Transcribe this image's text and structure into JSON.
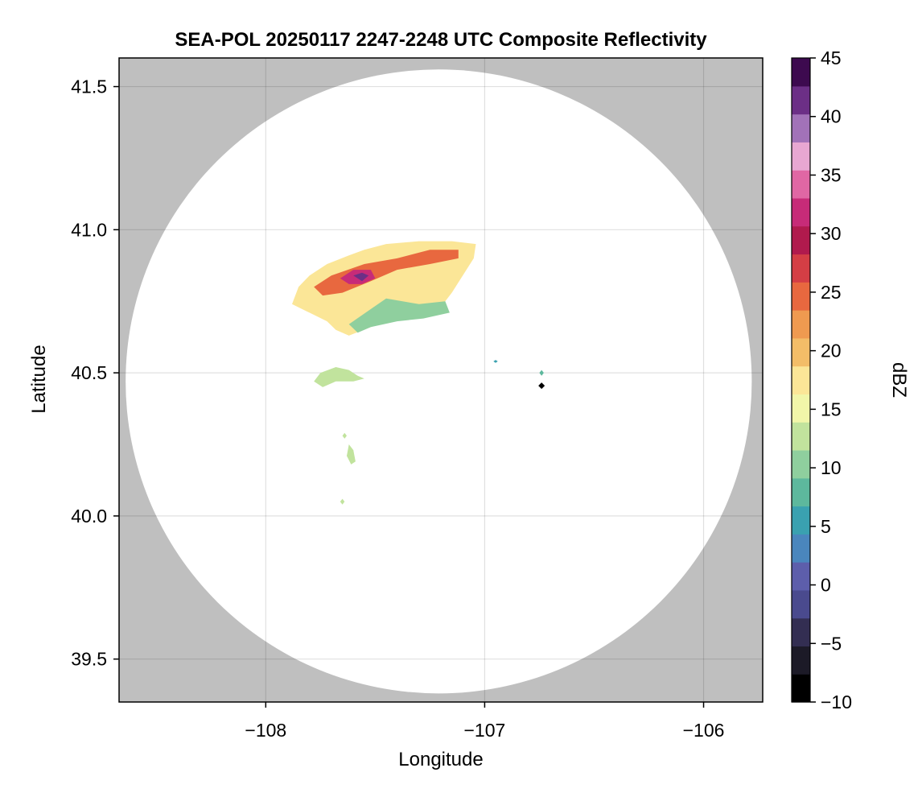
{
  "chart_data": {
    "type": "heatmap",
    "title": "SEA-POL 20250117 2247-2248 UTC Composite Reflectivity",
    "xlabel": "Longitude",
    "ylabel": "Latitude",
    "xlim": [
      -108.67,
      -105.73
    ],
    "ylim": [
      39.35,
      41.6
    ],
    "x_ticks": [
      -108,
      -107,
      -106
    ],
    "x_tick_labels": [
      "−108",
      "−107",
      "−106"
    ],
    "y_ticks": [
      39.5,
      40.0,
      40.5,
      41.0,
      41.5
    ],
    "y_tick_labels": [
      "39.5",
      "40.0",
      "40.5",
      "41.0",
      "41.5"
    ],
    "grid": true,
    "outside_range_color": "#bfbfbf",
    "radar_coverage": {
      "center_lon": -107.21,
      "center_lat": 40.47,
      "lon_radius": 1.43,
      "lat_radius": 1.09
    },
    "radar_site": {
      "lon": -106.74,
      "lat": 40.455
    },
    "colorbar": {
      "label": "dBZ",
      "min": -10,
      "max": 45,
      "ticks": [
        -10,
        -5,
        0,
        5,
        10,
        15,
        20,
        25,
        30,
        35,
        40,
        45
      ],
      "tick_labels": [
        "−10",
        "−5",
        "0",
        "5",
        "10",
        "15",
        "20",
        "25",
        "30",
        "35",
        "40",
        "45"
      ],
      "colors": [
        "#000000",
        "#1c1a27",
        "#332e52",
        "#4a4a8e",
        "#5d5eab",
        "#4a86bd",
        "#3aa1b0",
        "#5db89d",
        "#8fcf9e",
        "#c1e39d",
        "#f1f6a9",
        "#fbe697",
        "#f3bd68",
        "#ef9a50",
        "#e8683f",
        "#d43e45",
        "#b01a4d",
        "#c72b78",
        "#e067a4",
        "#e8a7d2",
        "#a272b8",
        "#6c2f86",
        "#3d0a4f"
      ]
    },
    "echo_regions": [
      {
        "name": "main-storm-complex",
        "polygon": [
          [
            -107.88,
            40.74
          ],
          [
            -107.85,
            40.8
          ],
          [
            -107.8,
            40.84
          ],
          [
            -107.72,
            40.88
          ],
          [
            -107.62,
            40.91
          ],
          [
            -107.55,
            40.93
          ],
          [
            -107.45,
            40.95
          ],
          [
            -107.3,
            40.96
          ],
          [
            -107.15,
            40.96
          ],
          [
            -107.04,
            40.95
          ],
          [
            -107.05,
            40.9
          ],
          [
            -107.1,
            40.84
          ],
          [
            -107.15,
            40.78
          ],
          [
            -107.2,
            40.73
          ],
          [
            -107.28,
            40.7
          ],
          [
            -107.4,
            40.69
          ],
          [
            -107.52,
            40.66
          ],
          [
            -107.62,
            40.63
          ],
          [
            -107.68,
            40.65
          ],
          [
            -107.72,
            40.68
          ],
          [
            -107.8,
            40.71
          ]
        ],
        "dbz": 17
      },
      {
        "name": "moderate-core",
        "polygon": [
          [
            -107.78,
            40.8
          ],
          [
            -107.7,
            40.84
          ],
          [
            -107.55,
            40.88
          ],
          [
            -107.4,
            40.9
          ],
          [
            -107.25,
            40.93
          ],
          [
            -107.12,
            40.93
          ],
          [
            -107.12,
            40.9
          ],
          [
            -107.25,
            40.88
          ],
          [
            -107.4,
            40.86
          ],
          [
            -107.52,
            40.82
          ],
          [
            -107.65,
            40.78
          ],
          [
            -107.74,
            40.77
          ]
        ],
        "dbz": 24
      },
      {
        "name": "strong-cell",
        "polygon": [
          [
            -107.66,
            40.83
          ],
          [
            -107.6,
            40.86
          ],
          [
            -107.52,
            40.86
          ],
          [
            -107.5,
            40.83
          ],
          [
            -107.56,
            40.81
          ],
          [
            -107.62,
            40.81
          ]
        ],
        "dbz": 33
      },
      {
        "name": "intense-core",
        "polygon": [
          [
            -107.6,
            40.84
          ],
          [
            -107.56,
            40.85
          ],
          [
            -107.53,
            40.84
          ],
          [
            -107.56,
            40.82
          ]
        ],
        "dbz": 42
      },
      {
        "name": "weak-southern-edge",
        "polygon": [
          [
            -107.45,
            40.76
          ],
          [
            -107.3,
            40.74
          ],
          [
            -107.18,
            40.75
          ],
          [
            -107.16,
            40.71
          ],
          [
            -107.28,
            40.69
          ],
          [
            -107.4,
            40.68
          ],
          [
            -107.52,
            40.66
          ],
          [
            -107.58,
            40.64
          ],
          [
            -107.62,
            40.67
          ]
        ],
        "dbz": 11
      },
      {
        "name": "isolated-cell-40-5",
        "polygon": [
          [
            -107.78,
            40.47
          ],
          [
            -107.75,
            40.5
          ],
          [
            -107.68,
            40.52
          ],
          [
            -107.62,
            40.51
          ],
          [
            -107.58,
            40.49
          ],
          [
            -107.55,
            40.48
          ],
          [
            -107.6,
            40.47
          ],
          [
            -107.68,
            40.47
          ],
          [
            -107.74,
            40.45
          ]
        ],
        "dbz": 13
      },
      {
        "name": "small-cell-40-2",
        "polygon": [
          [
            -107.62,
            40.25
          ],
          [
            -107.6,
            40.23
          ],
          [
            -107.59,
            40.19
          ],
          [
            -107.61,
            40.18
          ],
          [
            -107.63,
            40.21
          ]
        ],
        "dbz": 12
      },
      {
        "name": "speckle-1",
        "polygon": [
          [
            -107.65,
            40.28
          ],
          [
            -107.64,
            40.29
          ],
          [
            -107.63,
            40.28
          ],
          [
            -107.64,
            40.27
          ]
        ],
        "dbz": 12
      },
      {
        "name": "speckle-2",
        "polygon": [
          [
            -107.66,
            40.05
          ],
          [
            -107.65,
            40.06
          ],
          [
            -107.64,
            40.05
          ],
          [
            -107.65,
            40.04
          ]
        ],
        "dbz": 13
      },
      {
        "name": "speckle-3",
        "polygon": [
          [
            -106.75,
            40.5
          ],
          [
            -106.74,
            40.51
          ],
          [
            -106.73,
            40.5
          ],
          [
            -106.74,
            40.49
          ]
        ],
        "dbz": 9
      },
      {
        "name": "speckle-4",
        "polygon": [
          [
            -106.96,
            40.54
          ],
          [
            -106.95,
            40.545
          ],
          [
            -106.94,
            40.54
          ],
          [
            -106.95,
            40.535
          ]
        ],
        "dbz": 6
      }
    ]
  }
}
